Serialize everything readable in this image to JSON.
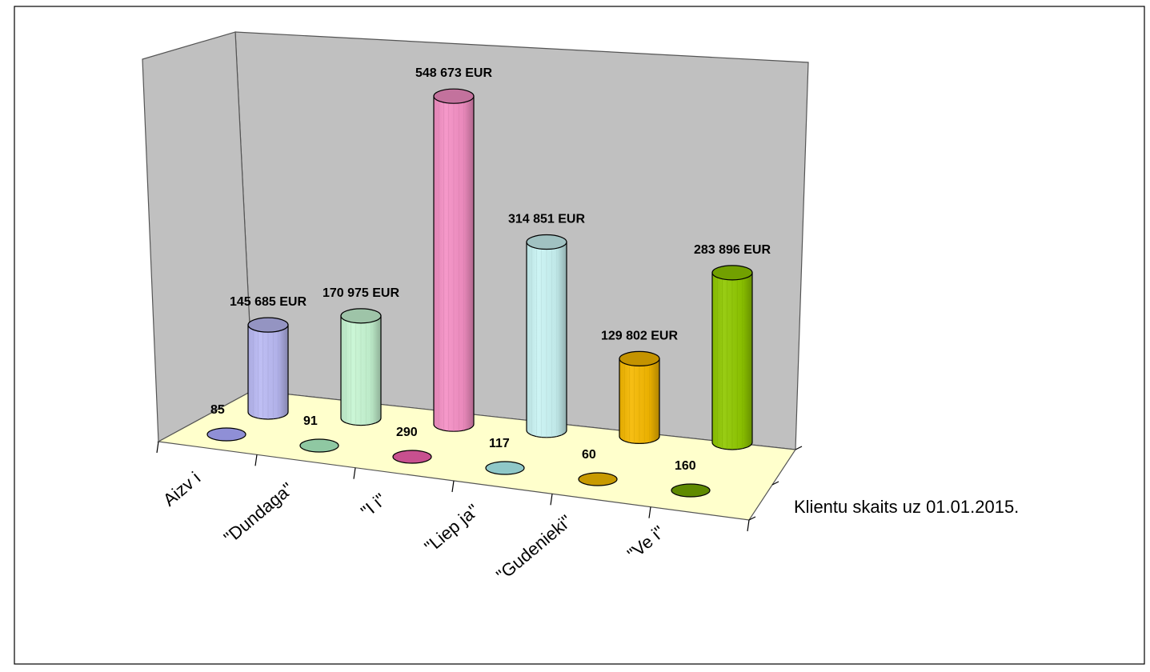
{
  "chart_data": {
    "type": "bar",
    "categories": [
      "Aizv   i",
      "\"Dundaga\"",
      "\"I   i\"",
      "\"Liep  ja\"",
      "\"Gudenieki\"",
      "\"Ve  i\""
    ],
    "series": [
      {
        "values": [
          145685,
          170975,
          548673,
          314851,
          129802,
          283896
        ],
        "labels": [
          "145 685 EUR",
          "170 975 EUR",
          "548 673 EUR",
          "314 851 EUR",
          "129 802 EUR",
          "283 896 EUR"
        ],
        "colors": [
          "#b9b9f3",
          "#c6f5d2",
          "#f48fc4",
          "#c9f3f3",
          "#f5b800",
          "#8fc800"
        ]
      },
      {
        "name": "Klientu skaits uz 01.01.2015.",
        "values": [
          85,
          91,
          290,
          117,
          60,
          160
        ],
        "labels": [
          "85",
          "91",
          "290",
          "117",
          "60",
          "160"
        ],
        "colors": [
          "#8f8fd6",
          "#8fc8a2",
          "#c8508f",
          "#8fc8c8",
          "#c89a00",
          "#5f8a00"
        ]
      }
    ],
    "wall_color": "#c0c0c0",
    "floor_color": "#ffffcc",
    "legend": "right",
    "grid": false,
    "ylim": [
      0,
      600000
    ]
  }
}
